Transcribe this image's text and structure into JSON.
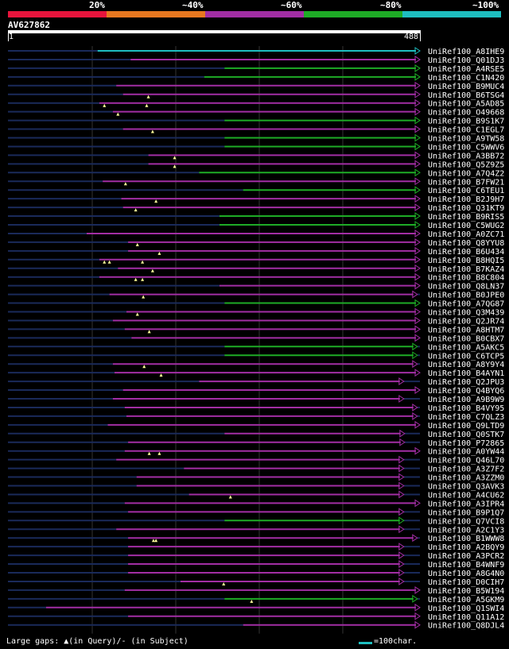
{
  "query_id": "AV627862",
  "ruler": {
    "start": "1",
    "end": "488"
  },
  "legend": [
    {
      "label": "20%",
      "color": "#e8143c"
    },
    {
      "label": "~40%",
      "color": "#e87820"
    },
    {
      "label": "~60%",
      "color": "#a22ea4"
    },
    {
      "label": "~80%",
      "color": "#1eac26"
    },
    {
      "label": "~100%",
      "color": "#1ebec0"
    }
  ],
  "colors": {
    "background": "#000000",
    "gridline": "#333333",
    "unaligned": "#1a2a5a",
    "identity_purple": "#a22ea4",
    "identity_green": "#1eac26",
    "identity_teal": "#1ebec0",
    "marker": "#ffff99"
  },
  "footer": {
    "gap_note": "Large gaps: ▲(in Query)/- (in Subject)",
    "scale_label": "=100char."
  },
  "chart_data": {
    "type": "alignment-overview",
    "query_length": 488,
    "hits": [
      {
        "name": "UniRef100_A8IHE9",
        "start": 107,
        "end": 488,
        "identity": "teal",
        "gaps": []
      },
      {
        "name": "UniRef100_Q01DJ3",
        "start": 146,
        "end": 488,
        "identity": "purple",
        "gaps": []
      },
      {
        "name": "UniRef100_A4RSE5",
        "start": 257,
        "end": 488,
        "identity": "green",
        "gaps": []
      },
      {
        "name": "UniRef100_C1N420",
        "start": 233,
        "end": 488,
        "identity": "green",
        "gaps": []
      },
      {
        "name": "UniRef100_B9MUC4",
        "start": 129,
        "end": 488,
        "identity": "purple",
        "gaps": []
      },
      {
        "name": "UniRef100_B6TSG4",
        "start": 137,
        "end": 488,
        "identity": "purple",
        "gaps": [
          167
        ]
      },
      {
        "name": "UniRef100_A5AD85",
        "start": 109,
        "end": 488,
        "identity": "purple",
        "gaps": [
          115,
          165
        ]
      },
      {
        "name": "UniRef100_O49668",
        "start": 125,
        "end": 488,
        "identity": "purple",
        "gaps": [
          131
        ]
      },
      {
        "name": "UniRef100_B9S1K7",
        "start": 257,
        "end": 488,
        "identity": "green",
        "gaps": []
      },
      {
        "name": "UniRef100_C1EGL7",
        "start": 137,
        "end": 488,
        "identity": "purple",
        "gaps": [
          172
        ]
      },
      {
        "name": "UniRef100_A9TW58",
        "start": 257,
        "end": 488,
        "identity": "green",
        "gaps": []
      },
      {
        "name": "UniRef100_C5WWV6",
        "start": 257,
        "end": 488,
        "identity": "green",
        "gaps": []
      },
      {
        "name": "UniRef100_A3BB72",
        "start": 167,
        "end": 488,
        "identity": "purple",
        "gaps": [
          198
        ]
      },
      {
        "name": "UniRef100_Q5Z9Z5",
        "start": 167,
        "end": 488,
        "identity": "purple",
        "gaps": [
          198
        ]
      },
      {
        "name": "UniRef100_A7Q4Z2",
        "start": 227,
        "end": 488,
        "identity": "green",
        "gaps": []
      },
      {
        "name": "UniRef100_B7FW21",
        "start": 113,
        "end": 488,
        "identity": "purple",
        "gaps": [
          140
        ]
      },
      {
        "name": "UniRef100_C6TEU1",
        "start": 279,
        "end": 488,
        "identity": "green",
        "gaps": []
      },
      {
        "name": "UniRef100_B2J9H7",
        "start": 135,
        "end": 488,
        "identity": "purple",
        "gaps": [
          176
        ]
      },
      {
        "name": "UniRef100_Q31KT9",
        "start": 137,
        "end": 488,
        "identity": "purple",
        "gaps": [
          152
        ]
      },
      {
        "name": "UniRef100_B9RIS5",
        "start": 251,
        "end": 488,
        "identity": "green",
        "gaps": []
      },
      {
        "name": "UniRef100_C5WUG2",
        "start": 251,
        "end": 488,
        "identity": "green",
        "gaps": []
      },
      {
        "name": "UniRef100_A0ZC71",
        "start": 94,
        "end": 488,
        "identity": "purple",
        "gaps": []
      },
      {
        "name": "UniRef100_Q8YYU8",
        "start": 143,
        "end": 488,
        "identity": "purple",
        "gaps": [
          154
        ]
      },
      {
        "name": "UniRef100_B6U434",
        "start": 143,
        "end": 488,
        "identity": "purple",
        "gaps": [
          180
        ]
      },
      {
        "name": "UniRef100_B8HQI5",
        "start": 109,
        "end": 488,
        "identity": "purple",
        "gaps": [
          115,
          121,
          160
        ]
      },
      {
        "name": "UniRef100_B7KAZ4",
        "start": 131,
        "end": 488,
        "identity": "purple",
        "gaps": [
          172
        ]
      },
      {
        "name": "UniRef100_B8C804",
        "start": 109,
        "end": 488,
        "identity": "purple",
        "gaps": [
          152,
          160
        ]
      },
      {
        "name": "UniRef100_Q8LN37",
        "start": 251,
        "end": 488,
        "identity": "purple",
        "gaps": []
      },
      {
        "name": "UniRef100_B0JPE0",
        "start": 121,
        "end": 485,
        "identity": "purple",
        "gaps": [
          161
        ]
      },
      {
        "name": "UniRef100_A7QG87",
        "start": 257,
        "end": 488,
        "identity": "green",
        "gaps": []
      },
      {
        "name": "UniRef100_Q3M439",
        "start": 141,
        "end": 488,
        "identity": "purple",
        "gaps": [
          154
        ]
      },
      {
        "name": "UniRef100_Q2JR74",
        "start": 125,
        "end": 488,
        "identity": "purple",
        "gaps": []
      },
      {
        "name": "UniRef100_A8HTM7",
        "start": 139,
        "end": 488,
        "identity": "purple",
        "gaps": [
          168
        ]
      },
      {
        "name": "UniRef100_B0CBX7",
        "start": 147,
        "end": 488,
        "identity": "purple",
        "gaps": []
      },
      {
        "name": "UniRef100_A5AKC5",
        "start": 257,
        "end": 485,
        "identity": "green",
        "gaps": []
      },
      {
        "name": "UniRef100_C6TCP5",
        "start": 257,
        "end": 485,
        "identity": "green",
        "gaps": []
      },
      {
        "name": "UniRef100_A8Y9Y4",
        "start": 125,
        "end": 485,
        "identity": "purple",
        "gaps": [
          162
        ]
      },
      {
        "name": "UniRef100_B4AYN1",
        "start": 127,
        "end": 488,
        "identity": "purple",
        "gaps": [
          182
        ]
      },
      {
        "name": "UniRef100_Q2JPU3",
        "start": 227,
        "end": 469,
        "identity": "purple",
        "gaps": []
      },
      {
        "name": "UniRef100_Q4BYQ6",
        "start": 137,
        "end": 488,
        "identity": "purple",
        "gaps": []
      },
      {
        "name": "UniRef100_A9B9W9",
        "start": 125,
        "end": 469,
        "identity": "purple",
        "gaps": []
      },
      {
        "name": "UniRef100_B4VY95",
        "start": 139,
        "end": 485,
        "identity": "purple",
        "gaps": []
      },
      {
        "name": "UniRef100_C7QLZ3",
        "start": 141,
        "end": 485,
        "identity": "purple",
        "gaps": []
      },
      {
        "name": "UniRef100_Q9LTD9",
        "start": 119,
        "end": 488,
        "identity": "purple",
        "gaps": []
      },
      {
        "name": "UniRef100_Q0STK7",
        "start": 257,
        "end": 470,
        "identity": "purple",
        "gaps": []
      },
      {
        "name": "UniRef100_P72865",
        "start": 143,
        "end": 470,
        "identity": "purple",
        "gaps": []
      },
      {
        "name": "UniRef100_A0YW44",
        "start": 139,
        "end": 488,
        "identity": "purple",
        "gaps": [
          168,
          180
        ]
      },
      {
        "name": "UniRef100_Q46L70",
        "start": 129,
        "end": 469,
        "identity": "purple",
        "gaps": []
      },
      {
        "name": "UniRef100_A3Z7F2",
        "start": 209,
        "end": 469,
        "identity": "purple",
        "gaps": []
      },
      {
        "name": "UniRef100_A3ZZM0",
        "start": 153,
        "end": 469,
        "identity": "purple",
        "gaps": []
      },
      {
        "name": "UniRef100_Q3AVK3",
        "start": 153,
        "end": 469,
        "identity": "purple",
        "gaps": []
      },
      {
        "name": "UniRef100_A4CU62",
        "start": 215,
        "end": 469,
        "identity": "purple",
        "gaps": [
          264
        ]
      },
      {
        "name": "UniRef100_A3IPR4",
        "start": 139,
        "end": 488,
        "identity": "purple",
        "gaps": []
      },
      {
        "name": "UniRef100_B9P1Q7",
        "start": 143,
        "end": 469,
        "identity": "purple",
        "gaps": []
      },
      {
        "name": "UniRef100_Q7VCI8",
        "start": 257,
        "end": 469,
        "identity": "green",
        "gaps": []
      },
      {
        "name": "UniRef100_A2C1Y3",
        "start": 129,
        "end": 469,
        "identity": "purple",
        "gaps": []
      },
      {
        "name": "UniRef100_B1WWW8",
        "start": 143,
        "end": 485,
        "identity": "purple",
        "gaps": [
          173,
          176
        ]
      },
      {
        "name": "UniRef100_A2BQY9",
        "start": 143,
        "end": 469,
        "identity": "purple",
        "gaps": []
      },
      {
        "name": "UniRef100_A3PCR2",
        "start": 143,
        "end": 469,
        "identity": "purple",
        "gaps": []
      },
      {
        "name": "UniRef100_B4WNF9",
        "start": 143,
        "end": 469,
        "identity": "purple",
        "gaps": []
      },
      {
        "name": "UniRef100_A8G4N0",
        "start": 143,
        "end": 469,
        "identity": "purple",
        "gaps": []
      },
      {
        "name": "UniRef100_D0CIH7",
        "start": 205,
        "end": 469,
        "identity": "purple",
        "gaps": [
          256
        ]
      },
      {
        "name": "UniRef100_B5W194",
        "start": 139,
        "end": 488,
        "identity": "purple",
        "gaps": []
      },
      {
        "name": "UniRef100_A5GKM9",
        "start": 257,
        "end": 485,
        "identity": "green",
        "gaps": [
          289
        ]
      },
      {
        "name": "UniRef100_Q1SWI4",
        "start": 46,
        "end": 488,
        "identity": "purple",
        "gaps": []
      },
      {
        "name": "UniRef100_Q11A12",
        "start": 143,
        "end": 488,
        "identity": "purple",
        "gaps": []
      },
      {
        "name": "UniRef100_Q8DJL4",
        "start": 279,
        "end": 488,
        "identity": "purple",
        "gaps": []
      }
    ]
  }
}
